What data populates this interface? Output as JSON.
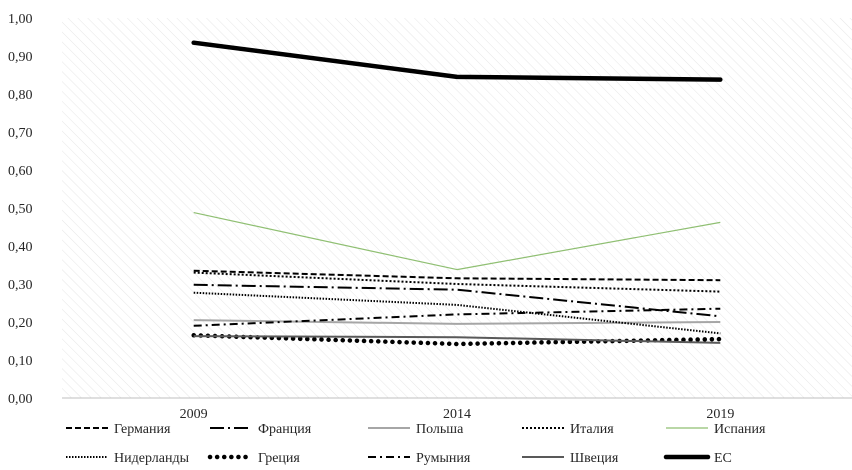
{
  "chart_data": {
    "type": "line",
    "x": [
      "2009",
      "2014",
      "2019"
    ],
    "ylim": [
      0,
      1
    ],
    "yticks": [
      "0,00",
      "0,10",
      "0,20",
      "0,30",
      "0,40",
      "0,50",
      "0,60",
      "0,70",
      "0,80",
      "0,90",
      "1,00"
    ],
    "grid": false,
    "background": "diagonal-hatch",
    "legend_position": "bottom",
    "series": [
      {
        "name": "Германия",
        "values": [
          0.335,
          0.315,
          0.31
        ],
        "color": "#000000",
        "style": "dashed"
      },
      {
        "name": "Франция",
        "values": [
          0.298,
          0.285,
          0.215
        ],
        "color": "#000000",
        "style": "longdash-dot"
      },
      {
        "name": "Польша",
        "values": [
          0.205,
          0.195,
          0.2
        ],
        "color": "#a6a6a6",
        "style": "solid"
      },
      {
        "name": "Италия",
        "values": [
          0.33,
          0.3,
          0.28
        ],
        "color": "#000000",
        "style": "dotted"
      },
      {
        "name": "Испания",
        "values": [
          0.488,
          0.338,
          0.462
        ],
        "color": "#8fbf72",
        "style": "solid-thin"
      },
      {
        "name": "Нидерланды",
        "values": [
          0.277,
          0.245,
          0.17
        ],
        "color": "#000000",
        "style": "dotted-fine"
      },
      {
        "name": "Греция",
        "values": [
          0.165,
          0.142,
          0.155
        ],
        "color": "#000000",
        "style": "round-dots"
      },
      {
        "name": "Румыния",
        "values": [
          0.19,
          0.22,
          0.235
        ],
        "color": "#000000",
        "style": "dash-dot"
      },
      {
        "name": "Швеция",
        "values": [
          0.163,
          0.16,
          0.145
        ],
        "color": "#595959",
        "style": "solid"
      },
      {
        "name": "ЕС",
        "values": [
          0.935,
          0.845,
          0.838
        ],
        "color": "#000000",
        "style": "thick"
      }
    ]
  }
}
